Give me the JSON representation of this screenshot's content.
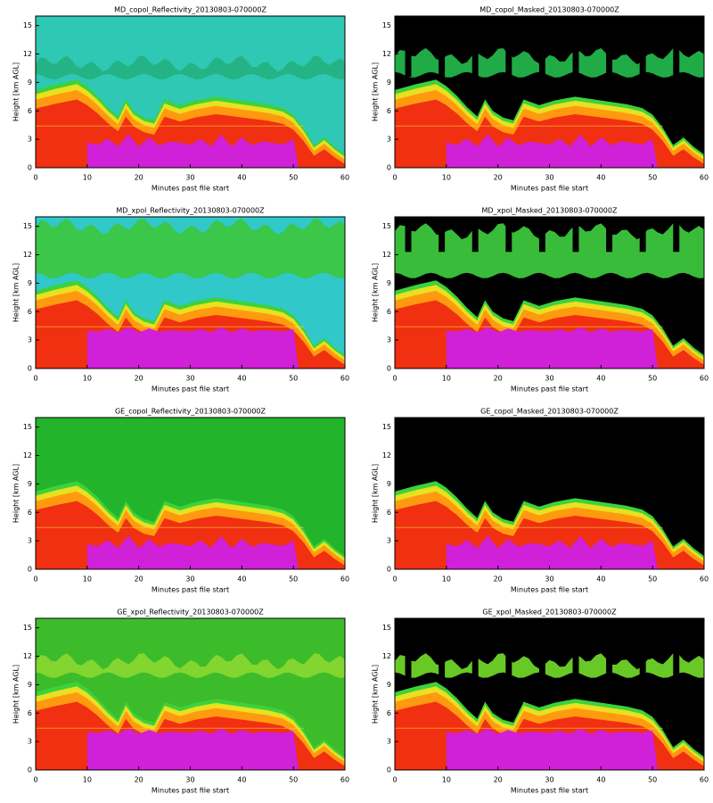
{
  "chart_data": [
    {
      "type": "heatmap",
      "title": "MD_copol_Reflectivity_20130803-070000Z",
      "xlabel": "Minutes past file start",
      "ylabel": "Height [km AGL]",
      "xlim": [
        0,
        60
      ],
      "ylim": [
        0,
        16
      ],
      "xticks": [
        0,
        10,
        20,
        30,
        40,
        50,
        60
      ],
      "yticks": [
        0,
        3,
        6,
        9,
        12,
        15
      ]
    },
    {
      "type": "heatmap",
      "title": "MD_copol_Masked_20130803-070000Z",
      "xlabel": "Minutes past file start",
      "ylabel": "Height [km AGL]",
      "xlim": [
        0,
        60
      ],
      "ylim": [
        0,
        16
      ],
      "xticks": [
        0,
        10,
        20,
        30,
        40,
        50,
        60
      ],
      "yticks": [
        0,
        3,
        6,
        9,
        12,
        15
      ]
    },
    {
      "type": "heatmap",
      "title": "MD_xpol_Reflectivity_20130803-070000Z",
      "xlabel": "Minutes past file start",
      "ylabel": "Height [km AGL]",
      "xlim": [
        0,
        60
      ],
      "ylim": [
        0,
        16
      ],
      "xticks": [
        0,
        10,
        20,
        30,
        40,
        50,
        60
      ],
      "yticks": [
        0,
        3,
        6,
        9,
        12,
        15
      ]
    },
    {
      "type": "heatmap",
      "title": "MD_xpol_Masked_20130803-070000Z",
      "xlabel": "Minutes past file start",
      "ylabel": "Height [km AGL]",
      "xlim": [
        0,
        60
      ],
      "ylim": [
        0,
        16
      ],
      "xticks": [
        0,
        10,
        20,
        30,
        40,
        50,
        60
      ],
      "yticks": [
        0,
        3,
        6,
        9,
        12,
        15
      ]
    },
    {
      "type": "heatmap",
      "title": "GE_copol_Reflectivity_20130803-070000Z",
      "xlabel": "Minutes past file start",
      "ylabel": "Height [km AGL]",
      "xlim": [
        0,
        60
      ],
      "ylim": [
        0,
        16
      ],
      "xticks": [
        0,
        10,
        20,
        30,
        40,
        50,
        60
      ],
      "yticks": [
        0,
        3,
        6,
        9,
        12,
        15
      ]
    },
    {
      "type": "heatmap",
      "title": "GE_copol_Masked_20130803-070000Z",
      "xlabel": "Minutes past file start",
      "ylabel": "Height [km AGL]",
      "xlim": [
        0,
        60
      ],
      "ylim": [
        0,
        16
      ],
      "xticks": [
        0,
        10,
        20,
        30,
        40,
        50,
        60
      ],
      "yticks": [
        0,
        3,
        6,
        9,
        12,
        15
      ]
    },
    {
      "type": "heatmap",
      "title": "GE_xpol_Reflectivity_20130803-070000Z",
      "xlabel": "Minutes past file start",
      "ylabel": "Height [km AGL]",
      "xlim": [
        0,
        60
      ],
      "ylim": [
        0,
        16
      ],
      "xticks": [
        0,
        10,
        20,
        30,
        40,
        50,
        60
      ],
      "yticks": [
        0,
        3,
        6,
        9,
        12,
        15
      ]
    },
    {
      "type": "heatmap",
      "title": "GE_xpol_Masked_20130803-070000Z",
      "xlabel": "Minutes past file start",
      "ylabel": "Height [km AGL]",
      "xlim": [
        0,
        60
      ],
      "ylim": [
        0,
        16
      ],
      "xticks": [
        0,
        10,
        20,
        30,
        40,
        50,
        60
      ],
      "yticks": [
        0,
        3,
        6,
        9,
        12,
        15
      ]
    }
  ]
}
